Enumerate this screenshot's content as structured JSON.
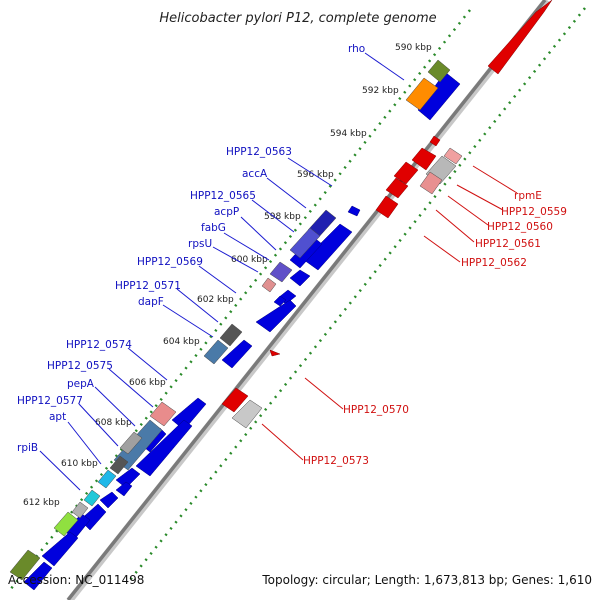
{
  "title": "Helicobacter pylori P12, complete genome",
  "accession": "Accession: NC_011498",
  "summary": "Topology: circular; Length: 1,673,813 bp; Genes: 1,610",
  "ticks": [
    "590 kbp",
    "592 kbp",
    "594 kbp",
    "596 kbp",
    "598 kbp",
    "600 kbp",
    "602 kbp",
    "604 kbp",
    "606 kbp",
    "608 kbp",
    "610 kbp",
    "612 kbp"
  ],
  "colors": {
    "forward_gene": "#d00000",
    "reverse_gene": "#0000dd",
    "backbone": "#7a7a7a",
    "tick_dots": "#2a8a2a"
  },
  "forward_labels": [
    "rpmE",
    "HPP12_0559",
    "HPP12_0560",
    "HPP12_0561",
    "HPP12_0562",
    "HPP12_0570",
    "HPP12_0573"
  ],
  "reverse_labels": [
    "rho",
    "HPP12_0563",
    "accA",
    "HPP12_0565",
    "acpP",
    "fabG",
    "rpsU",
    "HPP12_0569",
    "HPP12_0571",
    "dapF",
    "HPP12_0574",
    "HPP12_0575",
    "pepA",
    "HPP12_0577",
    "apt",
    "rpiB"
  ]
}
